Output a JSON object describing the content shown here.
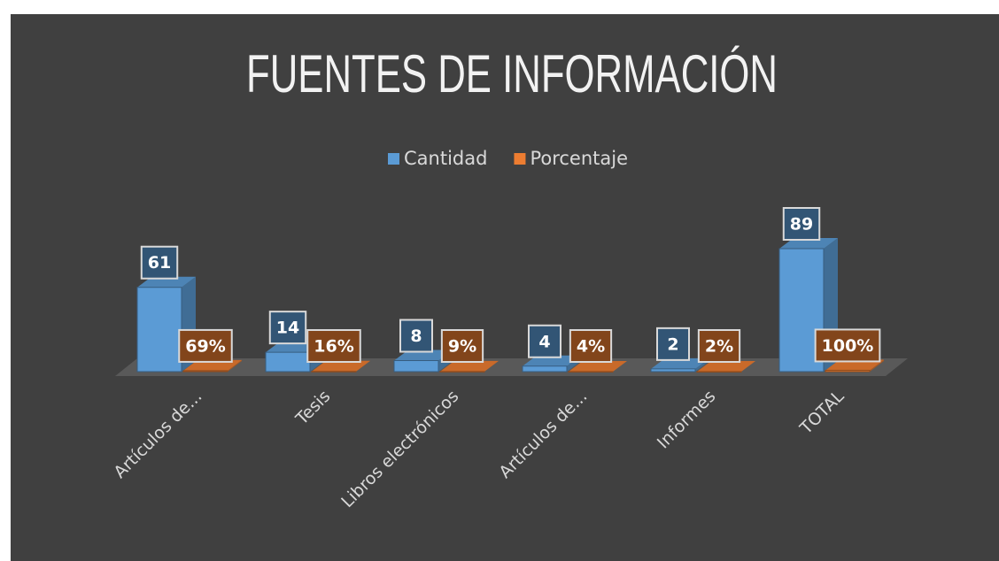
{
  "chart_data": {
    "type": "bar3d",
    "title": "FUENTES DE INFORMACIÓN",
    "categories": [
      "Artículos de...",
      "Tesis",
      "Libros electrónicos",
      "Artículos de...",
      "Informes",
      "TOTAL"
    ],
    "series": [
      {
        "name": "Cantidad",
        "color": "#5b9bd5",
        "values": [
          61,
          14,
          8,
          4,
          2,
          89
        ]
      },
      {
        "name": "Porcentaje",
        "color": "#ed7d31",
        "values": [
          0.69,
          0.16,
          0.09,
          0.04,
          0.02,
          1
        ],
        "value_labels": [
          "69%",
          "16%",
          "9%",
          "4%",
          "2%",
          "100%"
        ]
      }
    ]
  }
}
